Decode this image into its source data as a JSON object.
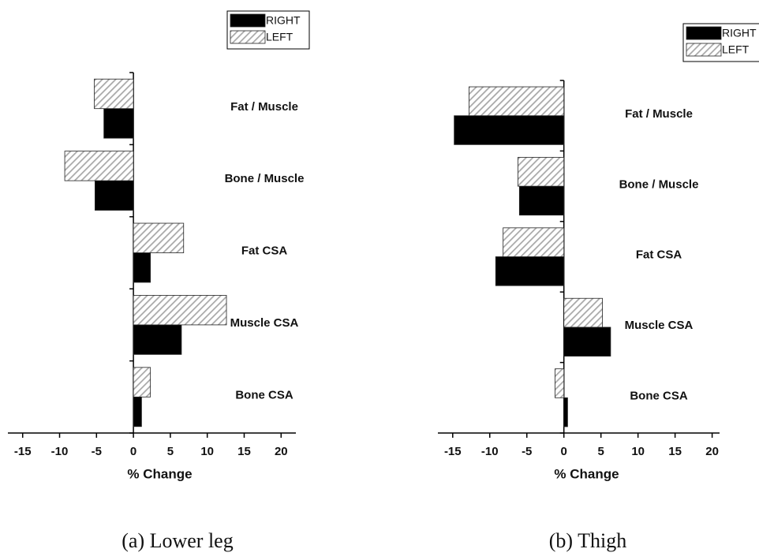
{
  "chart_data": [
    {
      "type": "barh",
      "caption": "(a) Lower leg",
      "x_label": "% Change",
      "categories": [
        "Fat / Muscle",
        "Bone / Muscle",
        "Fat CSA",
        "Muscle CSA",
        "Bone CSA"
      ],
      "series": [
        {
          "name": "RIGHT",
          "color": "#000000",
          "hatch": false,
          "values": [
            -4,
            -5.2,
            2.3,
            6.5,
            1.1
          ]
        },
        {
          "name": "LEFT",
          "color": "#a8a8a8",
          "hatch": true,
          "values": [
            -5.3,
            -9.3,
            6.8,
            12.6,
            2.3
          ]
        }
      ],
      "xlim": [
        -17,
        22
      ],
      "xticks": [
        -15,
        -10,
        -5,
        0,
        5,
        10,
        15,
        20
      ]
    },
    {
      "type": "barh",
      "caption": "(b) Thigh",
      "x_label": "% Change",
      "categories": [
        "Fat / Muscle",
        "Bone / Muscle",
        "Fat CSA",
        "Muscle CSA",
        "Bone CSA"
      ],
      "series": [
        {
          "name": "RIGHT",
          "color": "#000000",
          "hatch": false,
          "values": [
            -14.8,
            -6.0,
            -9.2,
            6.3,
            0.5
          ]
        },
        {
          "name": "LEFT",
          "color": "#a8a8a8",
          "hatch": true,
          "values": [
            -12.8,
            -6.2,
            -8.2,
            5.2,
            -1.2
          ]
        }
      ],
      "xlim": [
        -17,
        21
      ],
      "xticks": [
        -15,
        -10,
        -5,
        0,
        5,
        10,
        15,
        20
      ]
    }
  ]
}
